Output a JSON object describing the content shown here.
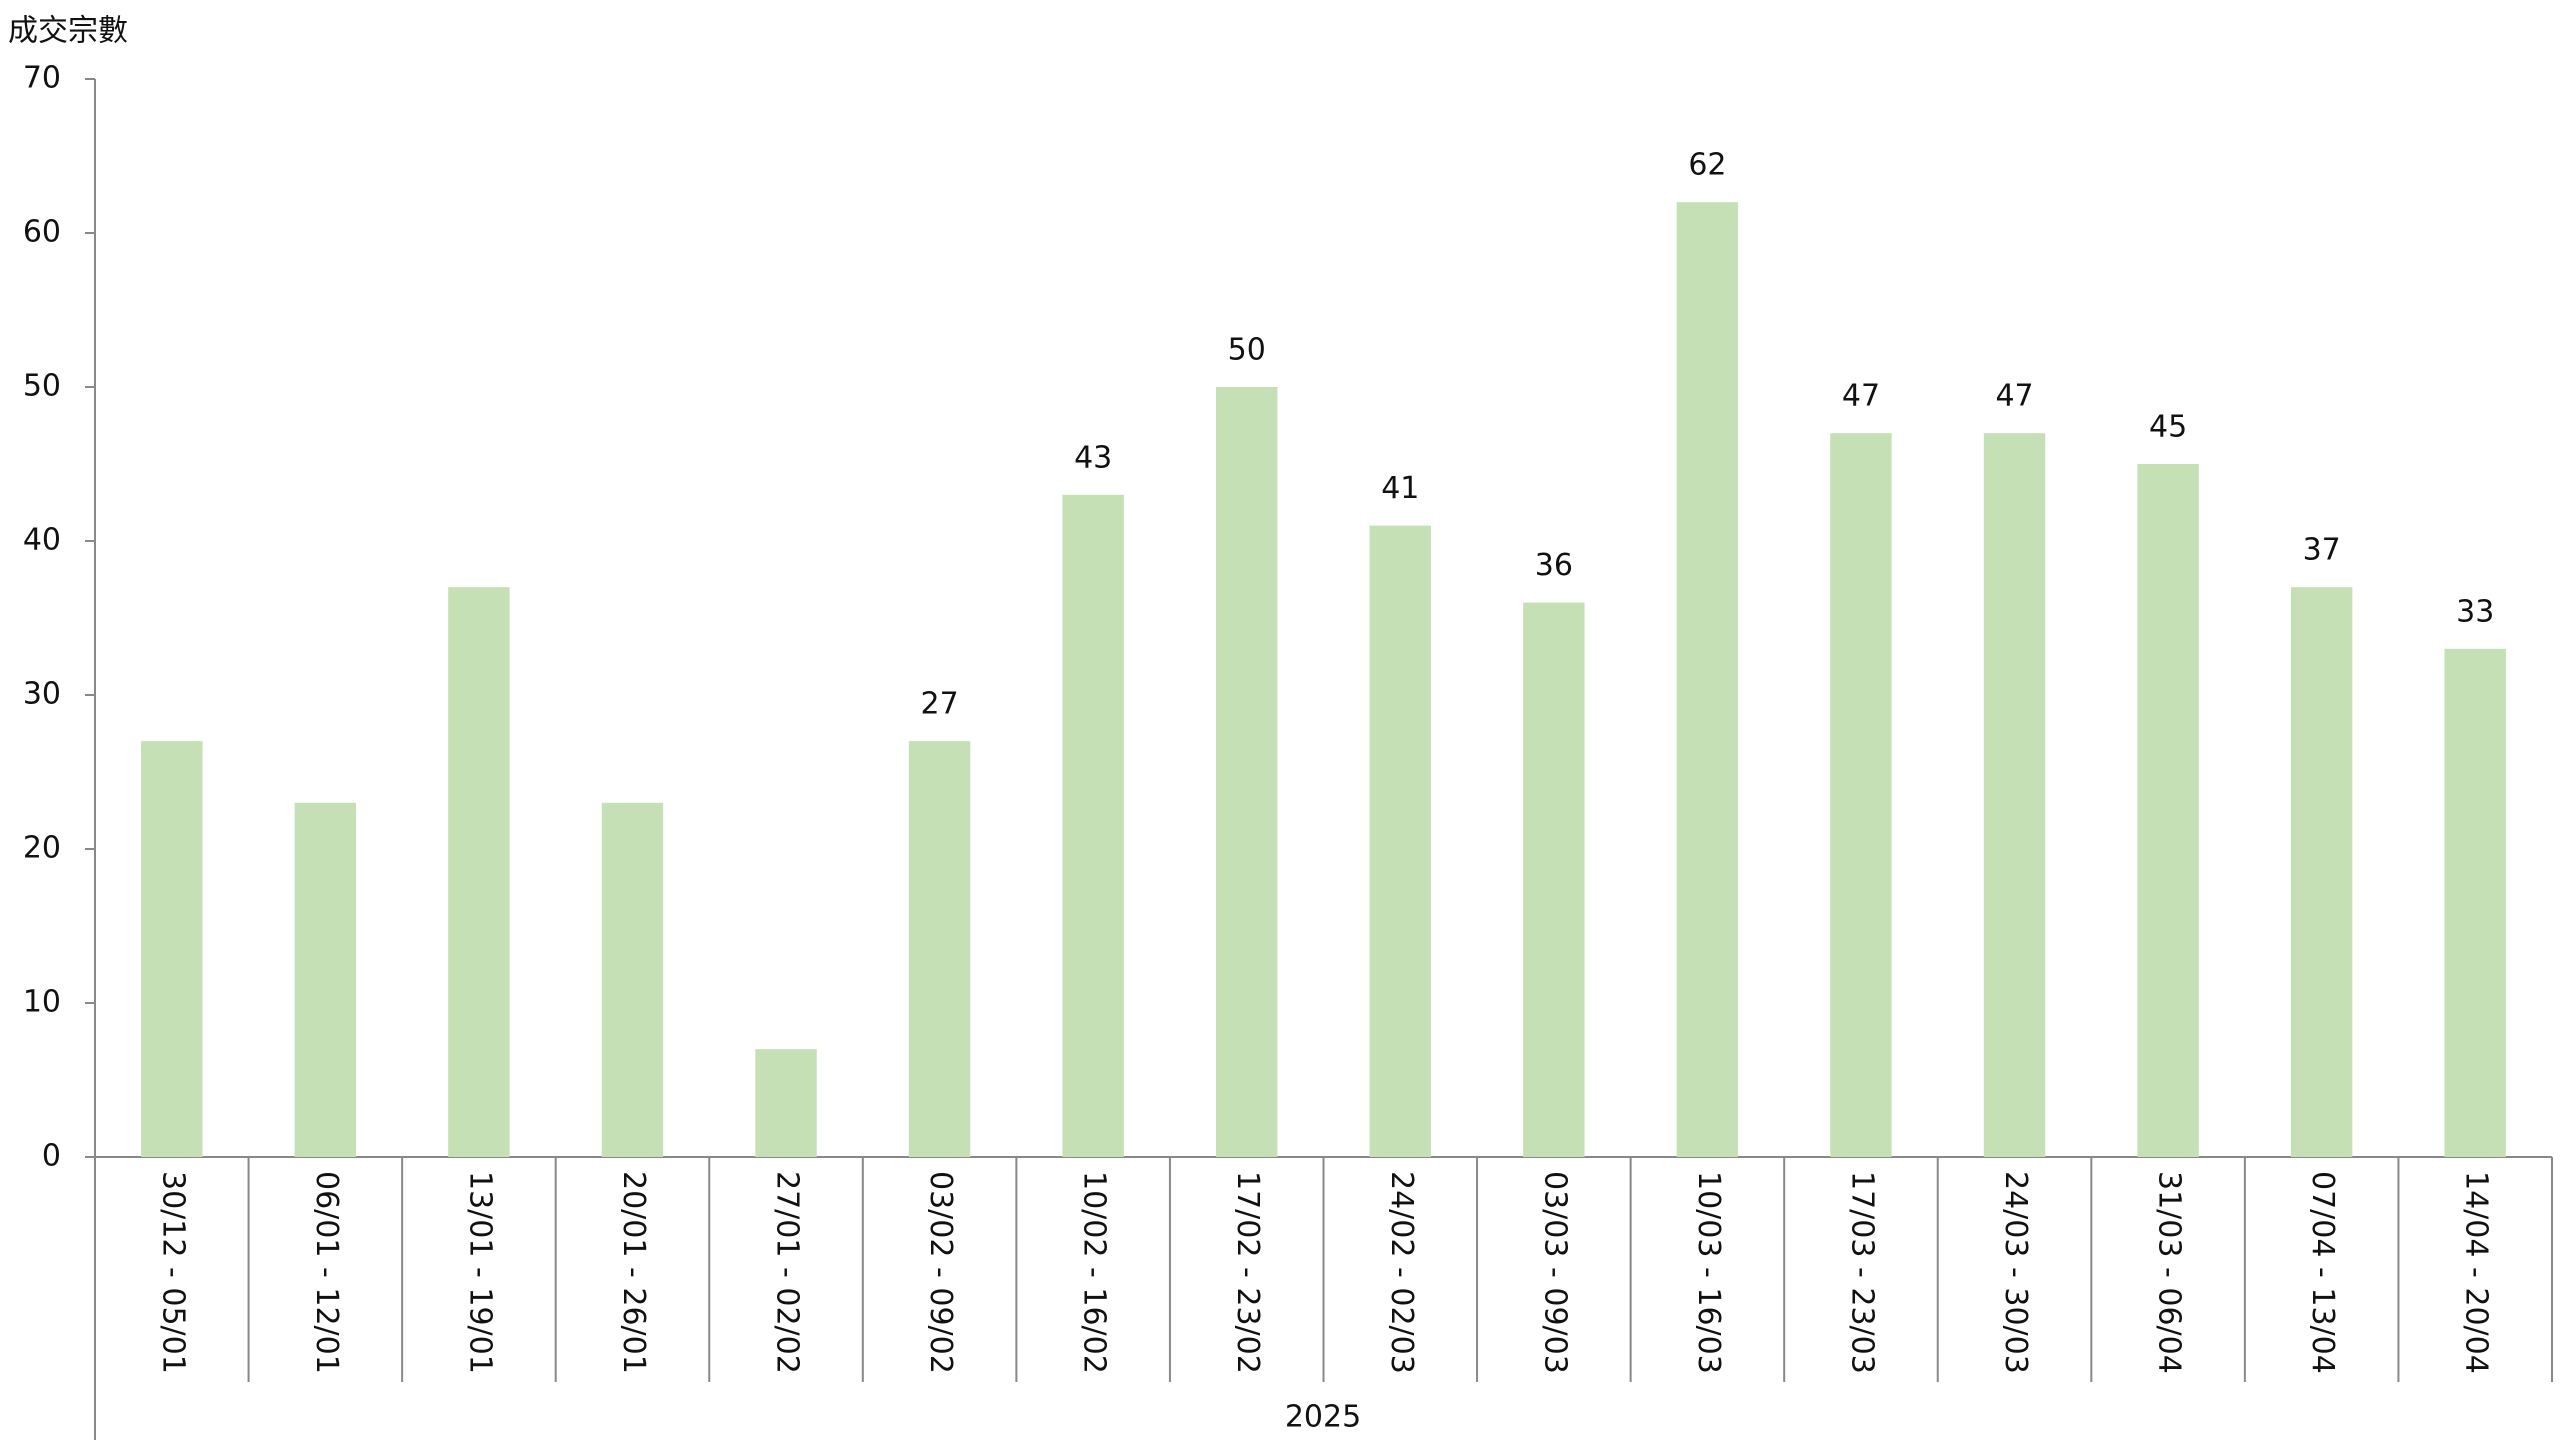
{
  "chart_data": {
    "type": "bar",
    "y_axis_label": "成交宗數",
    "x_group_label": "2025",
    "categories": [
      "30/12 - 05/01",
      "06/01 - 12/01",
      "13/01 - 19/01",
      "20/01 - 26/01",
      "27/01 - 02/02",
      "03/02 - 09/02",
      "10/02 - 16/02",
      "17/02 - 23/02",
      "24/02 - 02/03",
      "03/03 - 09/03",
      "10/03 - 16/03",
      "17/03 - 23/03",
      "24/03 - 30/03",
      "31/03 - 06/04",
      "07/04 - 13/04",
      "14/04 - 20/04"
    ],
    "values": [
      27,
      23,
      37,
      23,
      7,
      27,
      43,
      50,
      41,
      36,
      62,
      47,
      47,
      45,
      37,
      33
    ],
    "value_labels": [
      null,
      null,
      null,
      null,
      null,
      "27",
      "43",
      "50",
      "41",
      "36",
      "62",
      "47",
      "47",
      "45",
      "37",
      "33"
    ],
    "color": "#c5e0b4",
    "ylim": [
      0,
      70
    ],
    "yticks": [
      0,
      10,
      20,
      30,
      40,
      50,
      60,
      70
    ],
    "grid": false
  }
}
